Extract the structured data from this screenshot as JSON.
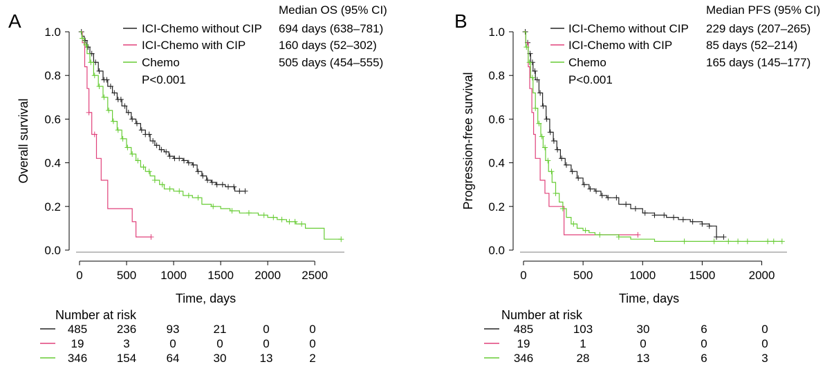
{
  "colors": {
    "ici_without_cip": "#222222",
    "ici_with_cip": "#e0407a",
    "chemo": "#66cc33"
  },
  "chart_data": [
    {
      "panel_label": "A",
      "type": "line",
      "subtype": "kaplan-meier",
      "xlabel": "Time, days",
      "ylabel": "Overall survival",
      "xlim": [
        0,
        2800
      ],
      "ylim": [
        0.0,
        1.0
      ],
      "xticks": [
        0,
        500,
        1000,
        1500,
        2000,
        2500
      ],
      "yticks": [
        0.0,
        0.2,
        0.4,
        0.6,
        0.8,
        1.0
      ],
      "ytick_labels": [
        "0.0",
        "0.2",
        "0.4",
        "0.6",
        "0.8",
        "1.0"
      ],
      "grid": false,
      "legend_position": "top",
      "stat_header": "Median OS (95% CI)",
      "pvalue": "P<0.001",
      "series": [
        {
          "name": "ICI-Chemo without CIP",
          "color": "#222222",
          "median": "694 days (638–781)",
          "x": [
            0,
            25,
            50,
            80,
            110,
            150,
            200,
            250,
            300,
            350,
            400,
            450,
            500,
            550,
            600,
            650,
            700,
            750,
            800,
            850,
            900,
            950,
            1000,
            1050,
            1100,
            1150,
            1200,
            1250,
            1300,
            1350,
            1400,
            1450,
            1500,
            1550,
            1600,
            1650,
            1700,
            1760
          ],
          "y": [
            1.0,
            0.98,
            0.96,
            0.93,
            0.9,
            0.86,
            0.82,
            0.78,
            0.75,
            0.72,
            0.69,
            0.66,
            0.63,
            0.6,
            0.58,
            0.55,
            0.53,
            0.5,
            0.48,
            0.46,
            0.45,
            0.43,
            0.42,
            0.42,
            0.41,
            0.4,
            0.39,
            0.36,
            0.34,
            0.32,
            0.31,
            0.3,
            0.3,
            0.29,
            0.29,
            0.27,
            0.27,
            0.27
          ],
          "censor_x": [
            20,
            60,
            90,
            130,
            170,
            210,
            260,
            290,
            330,
            370,
            410,
            440,
            480,
            520,
            560,
            610,
            660,
            700,
            740,
            780,
            820,
            870,
            920,
            960,
            1010,
            1060,
            1110,
            1160,
            1210,
            1260,
            1310,
            1360,
            1410,
            1460,
            1520,
            1580,
            1640,
            1700,
            1760
          ]
        },
        {
          "name": "ICI-Chemo with CIP",
          "color": "#e0407a",
          "median": "160 days (52–302)",
          "x": [
            0,
            30,
            55,
            80,
            100,
            130,
            180,
            230,
            300,
            560,
            600,
            760
          ],
          "y": [
            1.0,
            0.95,
            0.84,
            0.74,
            0.63,
            0.53,
            0.42,
            0.32,
            0.19,
            0.13,
            0.06,
            0.06
          ],
          "censor_x": [
            100,
            160,
            760
          ]
        },
        {
          "name": "Chemo",
          "color": "#66cc33",
          "median": "505 days (454–555)",
          "x": [
            0,
            25,
            50,
            80,
            110,
            150,
            200,
            250,
            300,
            350,
            400,
            450,
            500,
            550,
            600,
            650,
            700,
            750,
            800,
            850,
            900,
            1000,
            1100,
            1200,
            1300,
            1400,
            1500,
            1600,
            1700,
            1800,
            1900,
            2000,
            2100,
            2200,
            2300,
            2400,
            2550,
            2600,
            2780
          ],
          "y": [
            1.0,
            0.97,
            0.94,
            0.9,
            0.86,
            0.8,
            0.75,
            0.7,
            0.64,
            0.59,
            0.55,
            0.51,
            0.47,
            0.44,
            0.41,
            0.38,
            0.36,
            0.34,
            0.32,
            0.3,
            0.28,
            0.27,
            0.25,
            0.24,
            0.21,
            0.2,
            0.19,
            0.18,
            0.17,
            0.17,
            0.16,
            0.15,
            0.14,
            0.13,
            0.12,
            0.1,
            0.1,
            0.05,
            0.05
          ],
          "censor_x": [
            30,
            70,
            120,
            160,
            210,
            260,
            310,
            360,
            410,
            460,
            510,
            560,
            620,
            680,
            740,
            800,
            880,
            960,
            1060,
            1160,
            1260,
            1420,
            1620,
            1800,
            1960,
            2060,
            2150,
            2230,
            2290,
            2360,
            2780
          ]
        }
      ],
      "risk_table": {
        "title": "Number at risk",
        "rows": [
          {
            "color": "#222222",
            "values": [
              "485",
              "236",
              "93",
              "21",
              "0",
              "0"
            ]
          },
          {
            "color": "#e0407a",
            "values": [
              "19",
              "3",
              "0",
              "0",
              "0",
              "0"
            ]
          },
          {
            "color": "#66cc33",
            "values": [
              "346",
              "154",
              "64",
              "30",
              "13",
              "2"
            ]
          }
        ]
      }
    },
    {
      "panel_label": "B",
      "type": "line",
      "subtype": "kaplan-meier",
      "xlabel": "Time, days",
      "ylabel": "Progression-free survival",
      "xlim": [
        0,
        2200
      ],
      "ylim": [
        0.0,
        1.0
      ],
      "xticks": [
        0,
        500,
        1000,
        1500,
        2000
      ],
      "yticks": [
        0.0,
        0.2,
        0.4,
        0.6,
        0.8,
        1.0
      ],
      "ytick_labels": [
        "0.0",
        "0.2",
        "0.4",
        "0.6",
        "0.8",
        "1.0"
      ],
      "grid": false,
      "legend_position": "top",
      "stat_header": "Median PFS (95% CI)",
      "pvalue": "P<0.001",
      "series": [
        {
          "name": "ICI-Chemo without CIP",
          "color": "#222222",
          "median": "229 days (207–265)",
          "x": [
            0,
            20,
            40,
            60,
            80,
            100,
            130,
            160,
            190,
            220,
            250,
            280,
            310,
            350,
            400,
            450,
            500,
            550,
            600,
            650,
            700,
            800,
            900,
            1000,
            1100,
            1200,
            1300,
            1400,
            1500,
            1560,
            1620,
            1680
          ],
          "y": [
            1.0,
            0.95,
            0.9,
            0.86,
            0.82,
            0.78,
            0.72,
            0.66,
            0.6,
            0.54,
            0.5,
            0.46,
            0.42,
            0.39,
            0.36,
            0.33,
            0.3,
            0.28,
            0.27,
            0.25,
            0.24,
            0.21,
            0.19,
            0.17,
            0.16,
            0.15,
            0.14,
            0.13,
            0.12,
            0.11,
            0.06,
            0.06
          ],
          "censor_x": [
            15,
            35,
            55,
            75,
            95,
            115,
            140,
            165,
            195,
            225,
            255,
            285,
            320,
            360,
            410,
            460,
            510,
            560,
            610,
            660,
            710,
            780,
            860,
            940,
            1020,
            1100,
            1180,
            1260,
            1340,
            1420,
            1500,
            1560,
            1620,
            1680
          ]
        },
        {
          "name": "ICI-Chemo with CIP",
          "color": "#e0407a",
          "median": "85 days (52–214)",
          "x": [
            0,
            20,
            40,
            52,
            70,
            85,
            100,
            140,
            180,
            214,
            300,
            340,
            960
          ],
          "y": [
            1.0,
            0.95,
            0.84,
            0.74,
            0.63,
            0.53,
            0.42,
            0.32,
            0.26,
            0.2,
            0.2,
            0.07,
            0.07
          ],
          "censor_x": [
            960
          ]
        },
        {
          "name": "Chemo",
          "color": "#66cc33",
          "median": "165 days (145–177)",
          "x": [
            0,
            20,
            40,
            60,
            80,
            100,
            120,
            145,
            165,
            185,
            210,
            240,
            270,
            300,
            330,
            360,
            400,
            450,
            500,
            550,
            600,
            700,
            800,
            900,
            1000,
            1100,
            1300,
            1500,
            1700,
            1900,
            2100,
            2170
          ],
          "y": [
            1.0,
            0.93,
            0.86,
            0.79,
            0.72,
            0.65,
            0.58,
            0.52,
            0.47,
            0.41,
            0.36,
            0.31,
            0.26,
            0.22,
            0.19,
            0.15,
            0.12,
            0.1,
            0.09,
            0.08,
            0.07,
            0.07,
            0.06,
            0.05,
            0.05,
            0.04,
            0.04,
            0.04,
            0.04,
            0.04,
            0.04,
            0.04
          ],
          "censor_x": [
            25,
            50,
            75,
            100,
            130,
            155,
            180,
            205,
            235,
            270,
            330,
            420,
            520,
            640,
            800,
            1350,
            1600,
            1720,
            1800,
            1880,
            2050,
            2100,
            2170
          ]
        }
      ],
      "risk_table": {
        "title": "Number at risk",
        "rows": [
          {
            "color": "#222222",
            "values": [
              "485",
              "103",
              "30",
              "6",
              "0"
            ]
          },
          {
            "color": "#e0407a",
            "values": [
              "19",
              "1",
              "0",
              "0",
              "0"
            ]
          },
          {
            "color": "#66cc33",
            "values": [
              "346",
              "28",
              "13",
              "6",
              "3"
            ]
          }
        ]
      }
    }
  ]
}
